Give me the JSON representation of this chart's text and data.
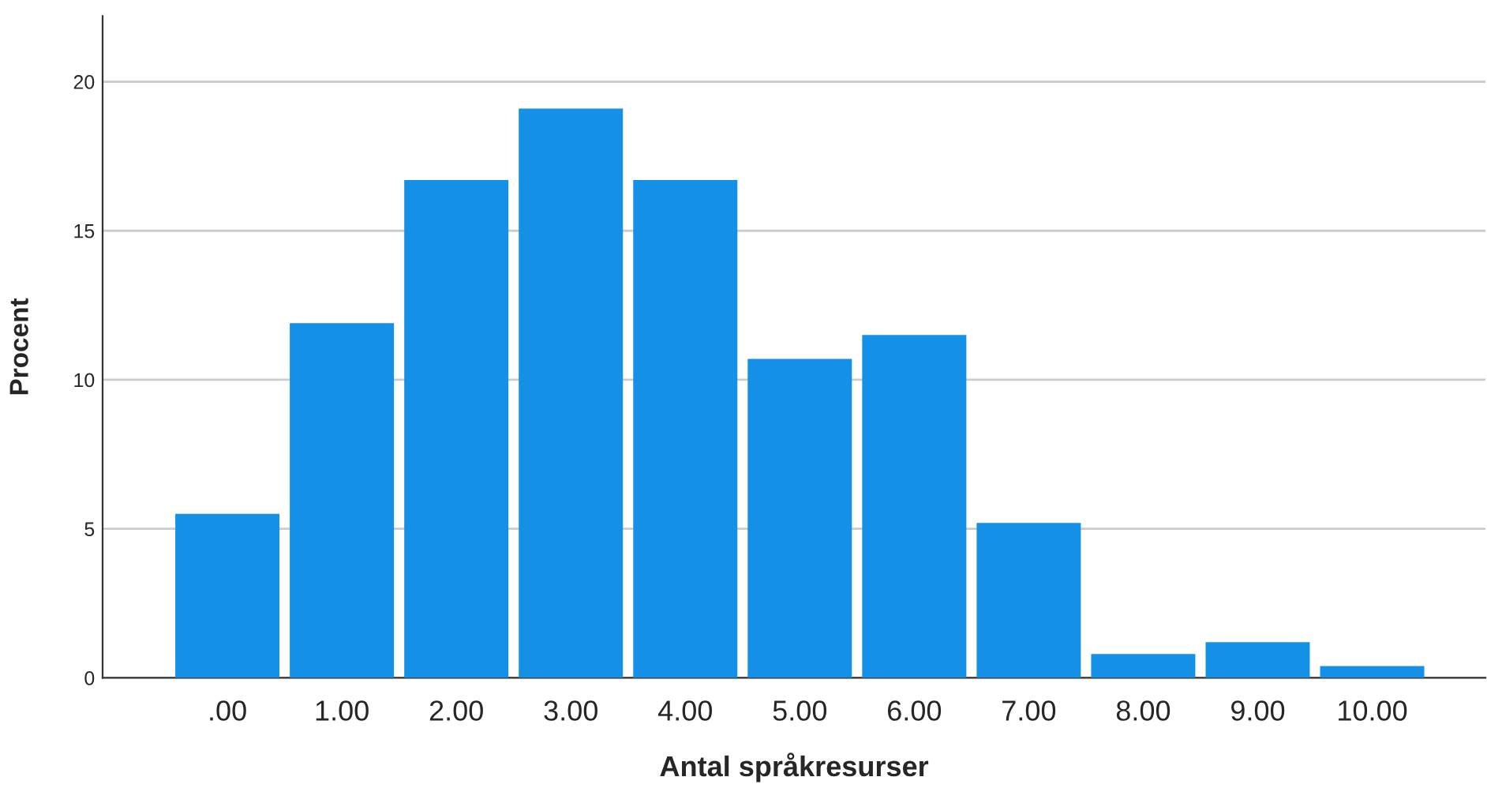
{
  "chart_data": {
    "type": "bar",
    "xlabel": "Antal språkresurser",
    "ylabel": "Procent",
    "categories": [
      ".00",
      "1.00",
      "2.00",
      "3.00",
      "4.00",
      "5.00",
      "6.00",
      "7.00",
      "8.00",
      "9.00",
      "10.00"
    ],
    "values": [
      5.5,
      11.9,
      16.7,
      19.1,
      16.7,
      10.7,
      11.5,
      5.2,
      0.8,
      1.2,
      0.4
    ],
    "color": "#1490e6",
    "ylim": [
      0,
      22.2
    ],
    "yticks": [
      0,
      5,
      10,
      15,
      20
    ],
    "grid": "y",
    "legend": false
  }
}
